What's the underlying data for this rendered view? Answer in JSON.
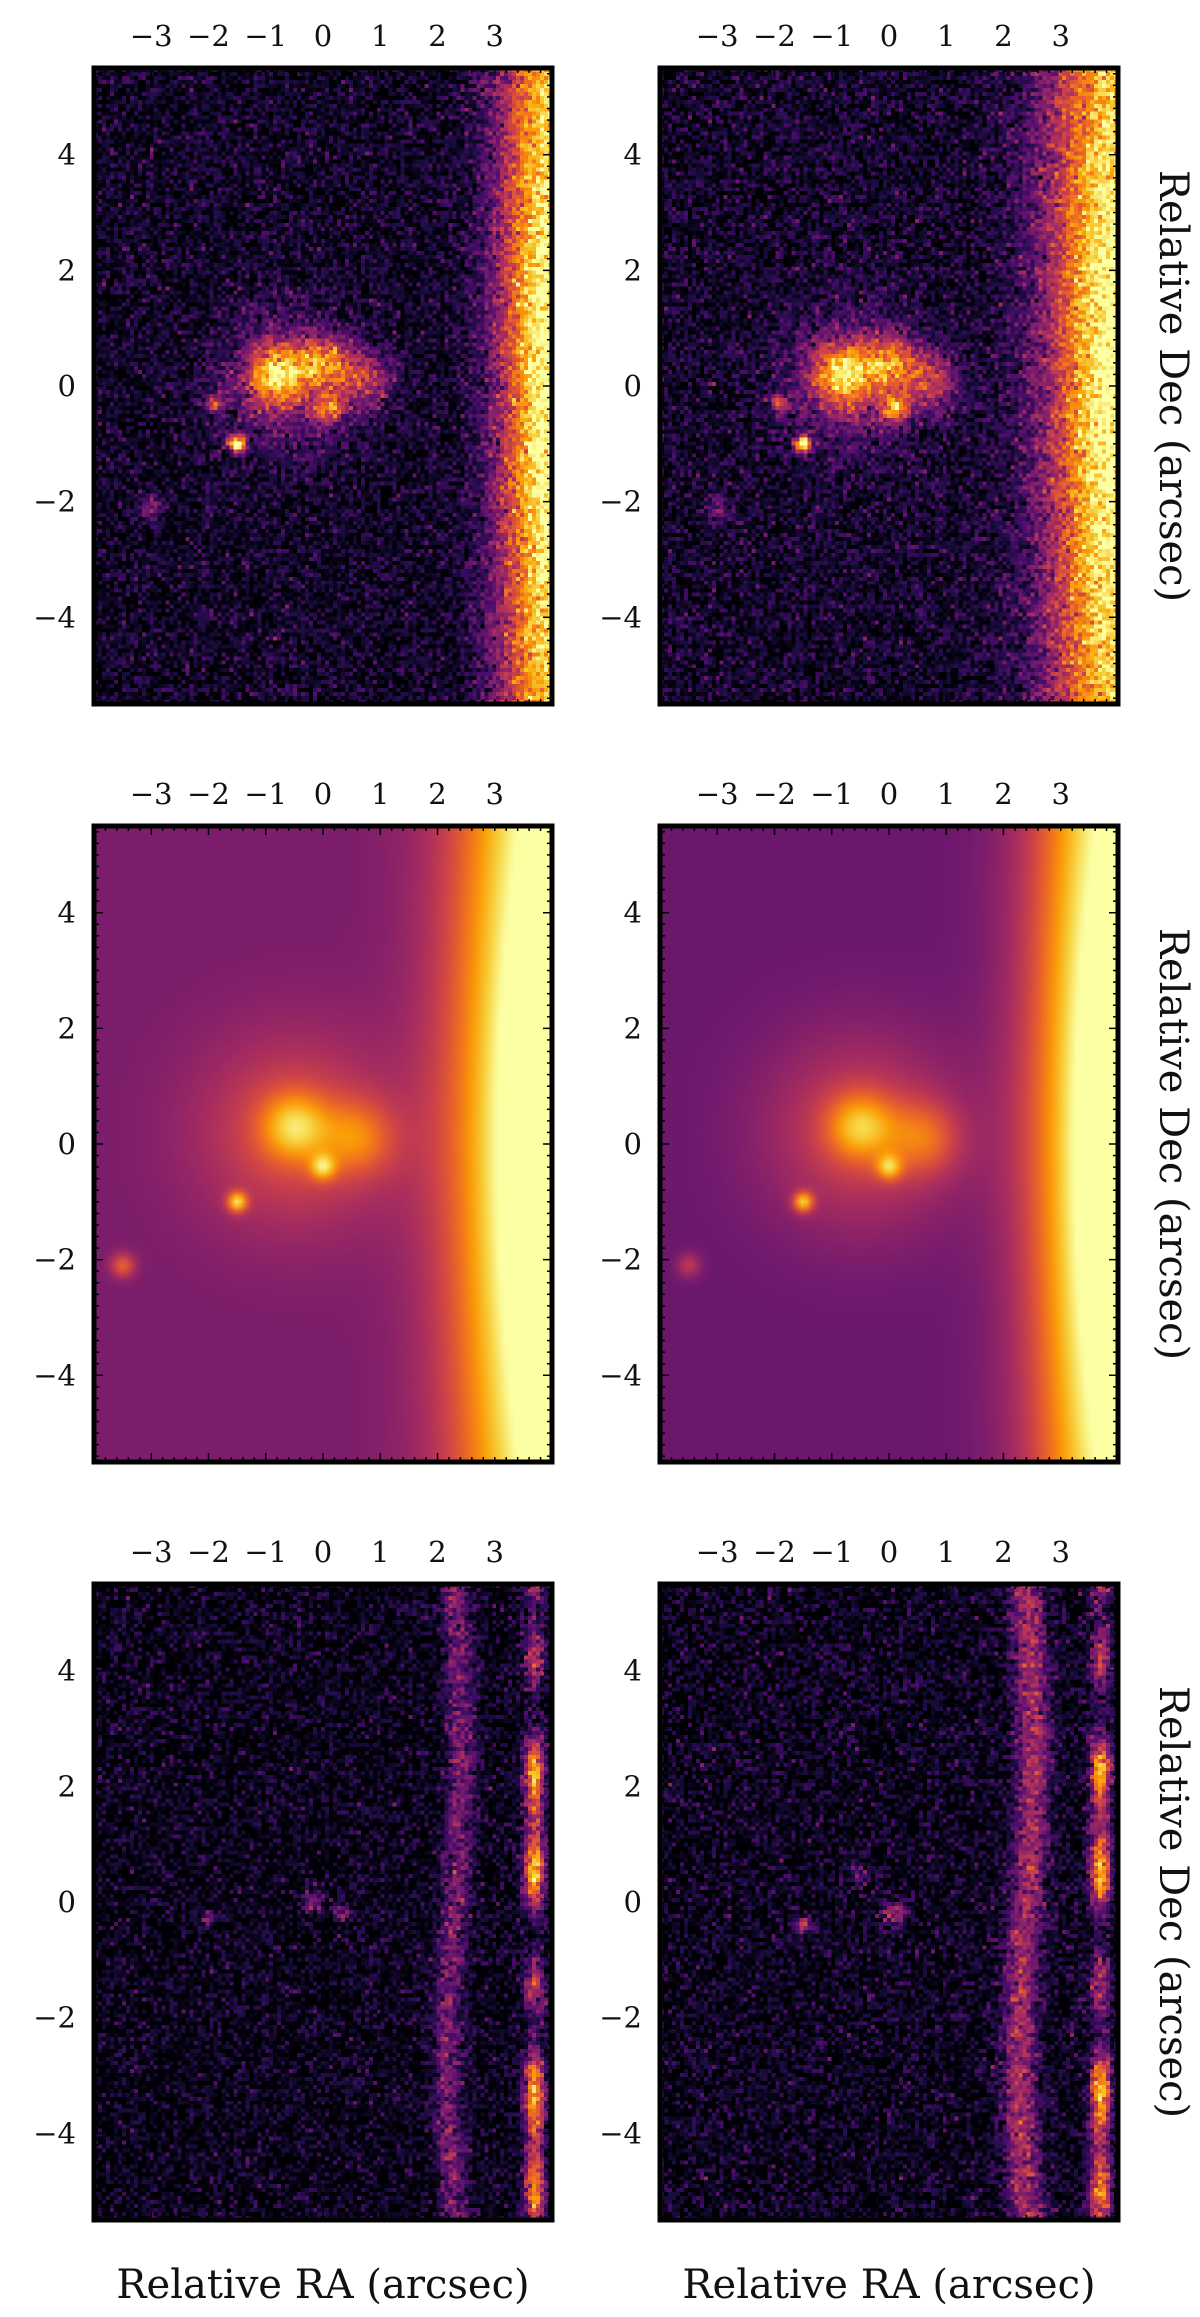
{
  "figure": {
    "colormap": "inferno",
    "colormap_stops": [
      "#000004",
      "#1b0c41",
      "#4a0c6b",
      "#781c6d",
      "#a52c60",
      "#cf4446",
      "#ed6925",
      "#fb9b06",
      "#f7d13d",
      "#fcffa4"
    ],
    "frame_color": "#000000"
  },
  "chart_data": [
    {
      "type": "heatmap",
      "panel": "observed",
      "row": 0,
      "col": 0,
      "x_ticks": [
        "−3",
        "−2",
        "−1",
        "0",
        "1",
        "2",
        "3"
      ],
      "y_ticks": [
        "4",
        "2",
        "0",
        "−2",
        "−4"
      ],
      "xlim": [
        -4.0,
        4.0
      ],
      "ylim": [
        -5.5,
        5.5
      ],
      "ylabel": "Relative Dec (arcsec)",
      "xlabel": "",
      "grid": false,
      "texture": "noisy",
      "background": 0.06,
      "edge_glow": {
        "present": true,
        "peak": 1.0,
        "half_width": 0.9
      },
      "sources": [
        {
          "x": -0.6,
          "y": 0.1,
          "amp": 0.35,
          "sigma": 0.8
        },
        {
          "x": -0.8,
          "y": 0.2,
          "amp": 0.6,
          "sigma": 0.35
        },
        {
          "x": 0.0,
          "y": 0.4,
          "amp": 0.45,
          "sigma": 0.3
        },
        {
          "x": 0.7,
          "y": 0.1,
          "amp": 0.4,
          "sigma": 0.35
        },
        {
          "x": 0.1,
          "y": -0.4,
          "amp": 0.55,
          "sigma": 0.15
        },
        {
          "x": -1.5,
          "y": -1.0,
          "amp": 1.0,
          "sigma": 0.1
        },
        {
          "x": -1.9,
          "y": -0.3,
          "amp": 0.5,
          "sigma": 0.1
        },
        {
          "x": -3.0,
          "y": -2.1,
          "amp": 0.3,
          "sigma": 0.15
        }
      ]
    },
    {
      "type": "heatmap",
      "panel": "observed",
      "row": 0,
      "col": 1,
      "x_ticks": [
        "−3",
        "−2",
        "−1",
        "0",
        "1",
        "2",
        "3"
      ],
      "y_ticks": [
        "4",
        "2",
        "0",
        "−2",
        "−4"
      ],
      "xlim": [
        -4.0,
        4.0
      ],
      "ylim": [
        -5.5,
        5.5
      ],
      "ylabel": "Relative Dec (arcsec)",
      "xlabel": "",
      "grid": false,
      "texture": "noisy",
      "background": 0.07,
      "edge_glow": {
        "present": true,
        "peak": 1.0,
        "half_width": 1.2
      },
      "sources": [
        {
          "x": -0.6,
          "y": 0.1,
          "amp": 0.35,
          "sigma": 0.8
        },
        {
          "x": -0.8,
          "y": 0.2,
          "amp": 0.6,
          "sigma": 0.35
        },
        {
          "x": 0.0,
          "y": 0.4,
          "amp": 0.45,
          "sigma": 0.3
        },
        {
          "x": 0.7,
          "y": 0.1,
          "amp": 0.4,
          "sigma": 0.35
        },
        {
          "x": 0.1,
          "y": -0.4,
          "amp": 0.55,
          "sigma": 0.15
        },
        {
          "x": -1.5,
          "y": -1.0,
          "amp": 1.0,
          "sigma": 0.1
        },
        {
          "x": -1.9,
          "y": -0.3,
          "amp": 0.5,
          "sigma": 0.1
        },
        {
          "x": -3.0,
          "y": -2.1,
          "amp": 0.25,
          "sigma": 0.15
        }
      ]
    },
    {
      "type": "heatmap",
      "panel": "model",
      "row": 1,
      "col": 0,
      "x_ticks": [
        "−3",
        "−2",
        "−1",
        "0",
        "1",
        "2",
        "3"
      ],
      "y_ticks": [
        "4",
        "2",
        "0",
        "−2",
        "−4"
      ],
      "xlim": [
        -4.0,
        4.0
      ],
      "ylim": [
        -5.5,
        5.5
      ],
      "ylabel": "Relative Dec (arcsec)",
      "xlabel": "",
      "grid": false,
      "texture": "smooth",
      "background": 0.34,
      "edge_glow": {
        "present": true,
        "peak": 0.95,
        "half_width": 1.6
      },
      "sources": [
        {
          "x": -0.5,
          "y": 0.2,
          "amp": 0.25,
          "sigma": 1.2
        },
        {
          "x": -0.5,
          "y": 0.3,
          "amp": 0.35,
          "sigma": 0.4
        },
        {
          "x": 0.6,
          "y": 0.1,
          "amp": 0.25,
          "sigma": 0.45
        },
        {
          "x": 0.0,
          "y": -0.4,
          "amp": 0.35,
          "sigma": 0.15
        },
        {
          "x": -1.5,
          "y": -1.0,
          "amp": 0.5,
          "sigma": 0.12
        },
        {
          "x": -3.5,
          "y": -2.1,
          "amp": 0.3,
          "sigma": 0.15
        }
      ]
    },
    {
      "type": "heatmap",
      "panel": "model",
      "row": 1,
      "col": 1,
      "x_ticks": [
        "−3",
        "−2",
        "−1",
        "0",
        "1",
        "2",
        "3"
      ],
      "y_ticks": [
        "4",
        "2",
        "0",
        "−2",
        "−4"
      ],
      "xlim": [
        -4.0,
        4.0
      ],
      "ylim": [
        -5.5,
        5.5
      ],
      "ylabel": "Relative Dec (arcsec)",
      "xlabel": "",
      "grid": false,
      "texture": "smooth",
      "background": 0.3,
      "edge_glow": {
        "present": true,
        "peak": 0.95,
        "half_width": 1.4
      },
      "sources": [
        {
          "x": -0.5,
          "y": 0.2,
          "amp": 0.25,
          "sigma": 1.2
        },
        {
          "x": -0.5,
          "y": 0.3,
          "amp": 0.35,
          "sigma": 0.4
        },
        {
          "x": 0.6,
          "y": 0.1,
          "amp": 0.25,
          "sigma": 0.45
        },
        {
          "x": 0.0,
          "y": -0.4,
          "amp": 0.35,
          "sigma": 0.15
        },
        {
          "x": -1.5,
          "y": -1.0,
          "amp": 0.5,
          "sigma": 0.12
        },
        {
          "x": -3.5,
          "y": -2.1,
          "amp": 0.2,
          "sigma": 0.15
        }
      ]
    },
    {
      "type": "heatmap",
      "panel": "residual",
      "row": 2,
      "col": 0,
      "x_ticks": [
        "−3",
        "−2",
        "−1",
        "0",
        "1",
        "2",
        "3"
      ],
      "y_ticks": [
        "4",
        "2",
        "0",
        "−2",
        "−4"
      ],
      "xlim": [
        -4.0,
        4.0
      ],
      "ylim": [
        -5.5,
        5.5
      ],
      "ylabel": "Relative Dec (arcsec)",
      "xlabel": "Relative RA (arcsec)",
      "grid": false,
      "texture": "noisy",
      "background": 0.03,
      "edge_glow": {
        "present": false
      },
      "residual_band": {
        "x": 2.3,
        "width": 0.25,
        "amp": 0.3
      },
      "edge_blobs": {
        "x": 3.7,
        "amp": 0.9
      },
      "sources": [
        {
          "x": -0.2,
          "y": 0.0,
          "amp": 0.35,
          "sigma": 0.12
        },
        {
          "x": 0.3,
          "y": -0.2,
          "amp": 0.3,
          "sigma": 0.12
        },
        {
          "x": -2.0,
          "y": -0.3,
          "amp": 0.3,
          "sigma": 0.1
        }
      ]
    },
    {
      "type": "heatmap",
      "panel": "residual",
      "row": 2,
      "col": 1,
      "x_ticks": [
        "−3",
        "−2",
        "−1",
        "0",
        "1",
        "2",
        "3"
      ],
      "y_ticks": [
        "4",
        "2",
        "0",
        "−2",
        "−4"
      ],
      "xlim": [
        -4.0,
        4.0
      ],
      "ylim": [
        -5.5,
        5.5
      ],
      "ylabel": "Relative Dec (arcsec)",
      "xlabel": "Relative RA (arcsec)",
      "grid": false,
      "texture": "noisy",
      "background": 0.04,
      "edge_glow": {
        "present": false
      },
      "residual_band": {
        "x": 2.4,
        "width": 0.3,
        "amp": 0.4
      },
      "edge_blobs": {
        "x": 3.7,
        "amp": 0.9
      },
      "sources": [
        {
          "x": -0.5,
          "y": 0.5,
          "amp": 0.3,
          "sigma": 0.12
        },
        {
          "x": 0.1,
          "y": -0.2,
          "amp": 0.45,
          "sigma": 0.15
        },
        {
          "x": -1.5,
          "y": -0.4,
          "amp": 0.45,
          "sigma": 0.1
        }
      ]
    }
  ]
}
